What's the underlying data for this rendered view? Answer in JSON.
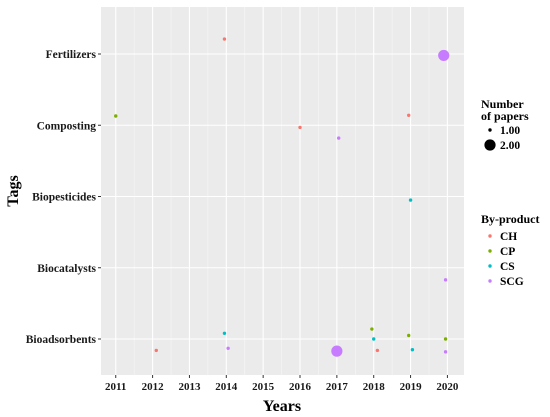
{
  "chart_data": {
    "type": "scatter",
    "xlabel": "Years",
    "ylabel": "Tags",
    "x_ticks": [
      "2011",
      "2012",
      "2013",
      "2014",
      "2015",
      "2016",
      "2017",
      "2018",
      "2019",
      "2020"
    ],
    "xlim": [
      2010.6,
      2020.45
    ],
    "y_categories": [
      "Bioadsorbents",
      "Biocatalysts",
      "Biopesticides",
      "Composting",
      "Fertilizers"
    ],
    "size_legend": {
      "title_lines": [
        "Number",
        "of papers"
      ],
      "entries": [
        {
          "label": "1.00",
          "value": 1
        },
        {
          "label": "2.00",
          "value": 2
        }
      ]
    },
    "color_legend": {
      "title": "By-product",
      "entries": [
        {
          "label": "CH",
          "color": "#F8766D"
        },
        {
          "label": "CP",
          "color": "#7CAE00"
        },
        {
          "label": "CS",
          "color": "#00BFC4"
        },
        {
          "label": "SCG",
          "color": "#C77CFF"
        }
      ]
    },
    "points": [
      {
        "x": 2011.0,
        "y": "Composting",
        "offset": 0.13,
        "group": "CP",
        "count": 1
      },
      {
        "x": 2013.95,
        "y": "Fertilizers",
        "offset": 0.21,
        "group": "CH",
        "count": 1
      },
      {
        "x": 2019.9,
        "y": "Fertilizers",
        "offset": -0.02,
        "group": "SCG",
        "count": 2
      },
      {
        "x": 2016.0,
        "y": "Composting",
        "offset": -0.03,
        "group": "CH",
        "count": 1
      },
      {
        "x": 2017.05,
        "y": "Composting",
        "offset": -0.18,
        "group": "SCG",
        "count": 1
      },
      {
        "x": 2018.95,
        "y": "Composting",
        "offset": 0.14,
        "group": "CH",
        "count": 1
      },
      {
        "x": 2019.0,
        "y": "Biopesticides",
        "offset": -0.05,
        "group": "CS",
        "count": 1
      },
      {
        "x": 2019.95,
        "y": "Biocatalysts",
        "offset": -0.17,
        "group": "SCG",
        "count": 1
      },
      {
        "x": 2012.1,
        "y": "Bioadsorbents",
        "offset": -0.16,
        "group": "CH",
        "count": 1
      },
      {
        "x": 2013.95,
        "y": "Bioadsorbents",
        "offset": 0.08,
        "group": "CS",
        "count": 1
      },
      {
        "x": 2014.05,
        "y": "Bioadsorbents",
        "offset": -0.13,
        "group": "SCG",
        "count": 1
      },
      {
        "x": 2017.0,
        "y": "Bioadsorbents",
        "offset": -0.17,
        "group": "SCG",
        "count": 2
      },
      {
        "x": 2017.95,
        "y": "Bioadsorbents",
        "offset": 0.14,
        "group": "CP",
        "count": 1
      },
      {
        "x": 2018.0,
        "y": "Bioadsorbents",
        "offset": 0.0,
        "group": "CS",
        "count": 1
      },
      {
        "x": 2018.1,
        "y": "Bioadsorbents",
        "offset": -0.16,
        "group": "CH",
        "count": 1
      },
      {
        "x": 2018.95,
        "y": "Bioadsorbents",
        "offset": 0.05,
        "group": "CP",
        "count": 1
      },
      {
        "x": 2019.05,
        "y": "Bioadsorbents",
        "offset": -0.15,
        "group": "CS",
        "count": 1
      },
      {
        "x": 2019.95,
        "y": "Bioadsorbents",
        "offset": 0.0,
        "group": "CP",
        "count": 1
      },
      {
        "x": 2019.95,
        "y": "Bioadsorbents",
        "offset": -0.18,
        "group": "SCG",
        "count": 1
      }
    ]
  }
}
